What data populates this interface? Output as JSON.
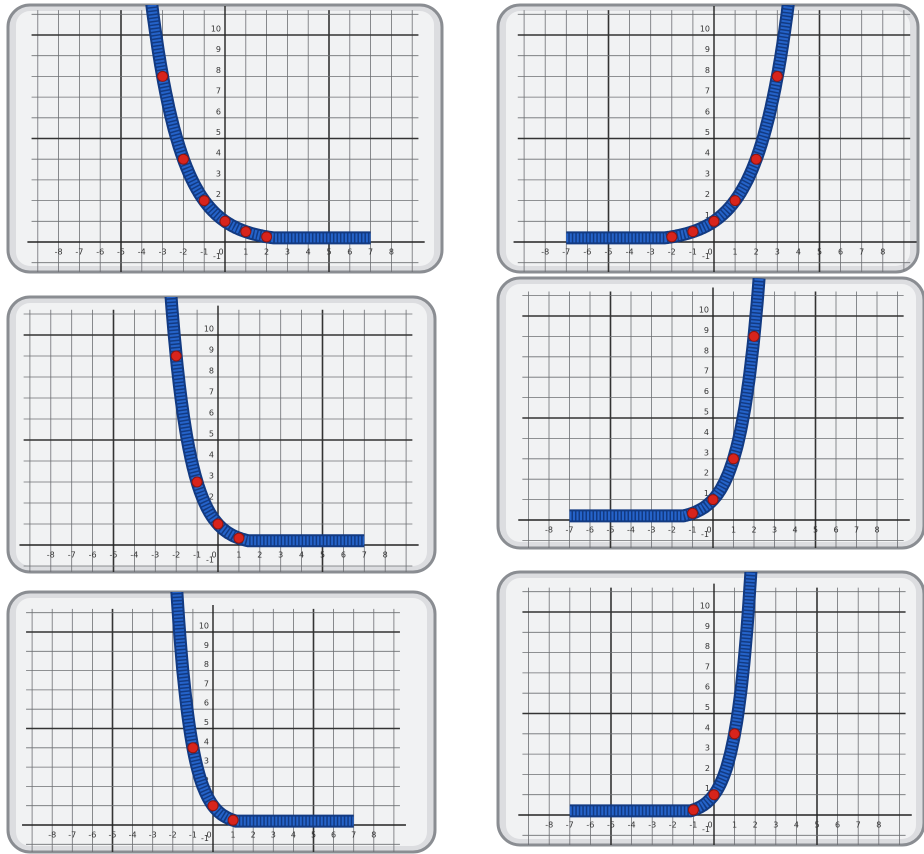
{
  "panels": [
    {
      "x_labels": [
        -8,
        -7,
        -6,
        -5,
        -4,
        -3,
        -2,
        -1,
        0,
        1,
        2,
        3,
        4,
        5,
        6,
        7,
        8
      ],
      "y_labels": [
        -1,
        1,
        2,
        3,
        4,
        5,
        6,
        7,
        8,
        9,
        10
      ],
      "points": [
        {
          "x": -3,
          "y": 8
        },
        {
          "x": -2,
          "y": 4
        },
        {
          "x": -1,
          "y": 2
        },
        {
          "x": 0,
          "y": 1
        },
        {
          "x": 1,
          "y": 0.5
        },
        {
          "x": 2,
          "y": 0.25
        }
      ]
    },
    {
      "x_labels": [
        -8,
        -7,
        -6,
        -5,
        -4,
        -3,
        -2,
        -1,
        0,
        1,
        2,
        3,
        4,
        5,
        6,
        7,
        8
      ],
      "y_labels": [
        -1,
        1,
        2,
        3,
        4,
        5,
        6,
        7,
        8,
        9,
        10
      ],
      "points": [
        {
          "x": -2,
          "y": 0.25
        },
        {
          "x": -1,
          "y": 0.5
        },
        {
          "x": 0,
          "y": 1
        },
        {
          "x": 1,
          "y": 2
        },
        {
          "x": 2,
          "y": 4
        },
        {
          "x": 3,
          "y": 8
        }
      ]
    },
    {
      "x_labels": [
        -8,
        -7,
        -6,
        -5,
        -4,
        -3,
        -2,
        -1,
        0,
        1,
        2,
        3,
        4,
        5,
        6,
        7,
        8
      ],
      "y_labels": [
        -1,
        1,
        2,
        3,
        4,
        5,
        6,
        7,
        8,
        9,
        10
      ],
      "points": [
        {
          "x": -2,
          "y": 9
        },
        {
          "x": -1,
          "y": 3
        },
        {
          "x": 0,
          "y": 1
        },
        {
          "x": 1,
          "y": 0.33
        }
      ]
    },
    {
      "x_labels": [
        -8,
        -7,
        -6,
        -5,
        -4,
        -3,
        -2,
        -1,
        0,
        1,
        2,
        3,
        4,
        5,
        6,
        7,
        8
      ],
      "y_labels": [
        -1,
        1,
        2,
        3,
        4,
        5,
        6,
        7,
        8,
        9,
        10
      ],
      "points": [
        {
          "x": -1,
          "y": 0.33
        },
        {
          "x": 0,
          "y": 1
        },
        {
          "x": 1,
          "y": 3
        },
        {
          "x": 2,
          "y": 9
        }
      ]
    },
    {
      "x_labels": [
        -8,
        -7,
        -6,
        -5,
        -4,
        -3,
        -2,
        -1,
        0,
        1,
        2,
        3,
        4,
        5,
        6,
        7,
        8
      ],
      "y_labels": [
        -1,
        1,
        2,
        3,
        4,
        5,
        6,
        7,
        8,
        9,
        10
      ],
      "points": [
        {
          "x": -1,
          "y": 4
        },
        {
          "x": 0,
          "y": 1
        },
        {
          "x": 1,
          "y": 0.25
        }
      ]
    },
    {
      "x_labels": [
        -8,
        -7,
        -6,
        -5,
        -4,
        -3,
        -2,
        -1,
        0,
        1,
        2,
        3,
        4,
        5,
        6,
        7,
        8
      ],
      "y_labels": [
        -1,
        1,
        2,
        3,
        4,
        5,
        6,
        7,
        8,
        9,
        10
      ],
      "points": [
        {
          "x": -1,
          "y": 0.25
        },
        {
          "x": 0,
          "y": 1
        },
        {
          "x": 1,
          "y": 4
        }
      ]
    }
  ]
}
